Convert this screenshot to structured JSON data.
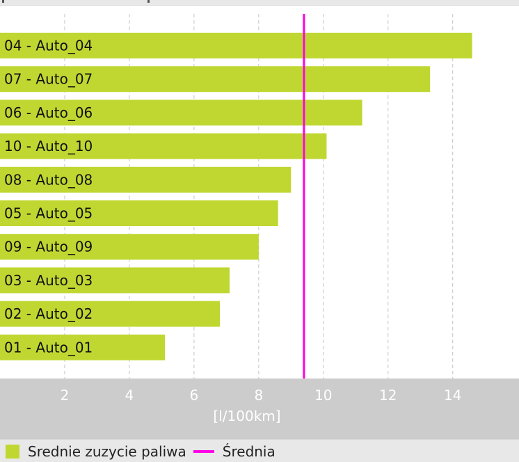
{
  "chart_data": {
    "type": "bar",
    "orientation": "horizontal",
    "categories": [
      "04 - Auto_04",
      "07 - Auto_07",
      "06 - Auto_06",
      "10 - Auto_10",
      "08 - Auto_08",
      "05 - Auto_05",
      "09 - Auto_09",
      "03 - Auto_03",
      "02 - Auto_02",
      "01 - Auto_01"
    ],
    "series": [
      {
        "name": "Srednie zuzycie paliwa",
        "values": [
          14.6,
          13.3,
          11.2,
          10.1,
          9.0,
          8.6,
          8.0,
          7.1,
          6.8,
          5.1
        ]
      }
    ],
    "reference_line": {
      "name": "Średnia",
      "value": 9.4
    },
    "xlabel": "[l/100km]",
    "xticks": [
      2,
      4,
      6,
      8,
      10,
      12,
      14
    ],
    "xlim": [
      0,
      16.05
    ],
    "grid": "vertical-dashed",
    "legend_position": "bottom-left",
    "colors": {
      "bar": "#c0d732",
      "reference_line": "#ff00e6",
      "grid": "#c4c4c4",
      "axis_band": "#cccccc",
      "tick_text": "#ffffff"
    }
  },
  "legend": {
    "bar_label": "Srednie zuzycie paliwa",
    "line_label": "Średnia"
  }
}
